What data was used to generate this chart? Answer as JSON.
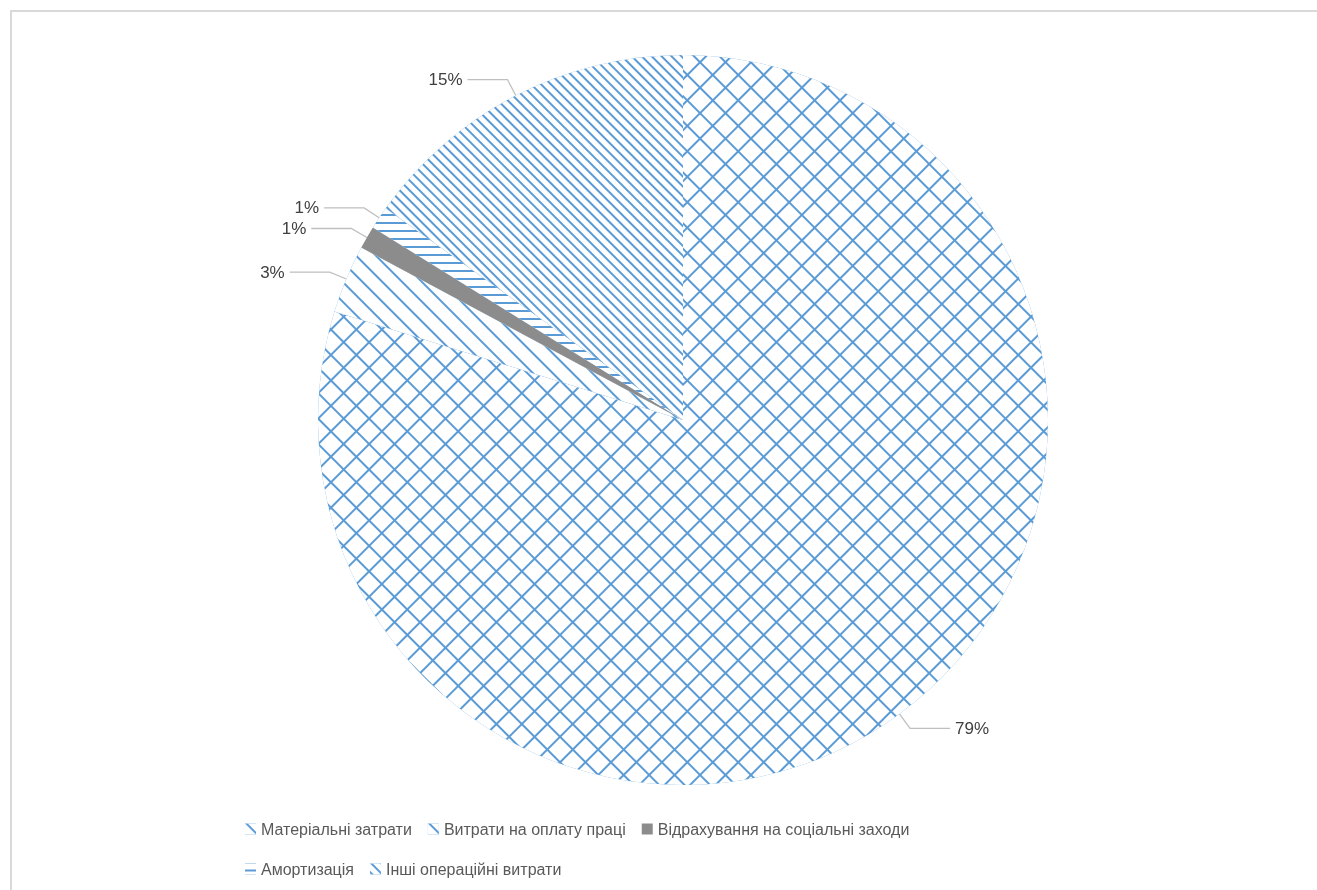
{
  "chart_data": {
    "type": "pie",
    "categories": [
      "Матеріальні затрати",
      "Витрати на оплату праці",
      "Відрахування на соціальні заходи",
      "Амортизація",
      "Інші операційні витрати"
    ],
    "values": [
      79,
      3,
      1,
      1,
      15
    ],
    "value_labels": [
      "79%",
      "3%",
      "1%",
      "1%",
      "15%"
    ],
    "colors": [
      "#5b9bd5",
      "#5b9bd5",
      "#8c8c8c",
      "#5b9bd5",
      "#5b9bd5"
    ],
    "legend": "bottom"
  }
}
